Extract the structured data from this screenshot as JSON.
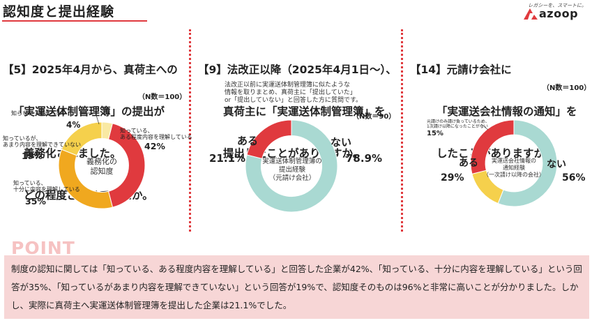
{
  "page": {
    "title": "認知度と提出経験"
  },
  "brand": {
    "tagline": "レガシーを、スマートに。",
    "name": "azoop",
    "accent": "#e03a3e"
  },
  "colors": {
    "red": "#e03a3e",
    "orange": "#f0a81f",
    "yellow": "#f5d04c",
    "light_yellow": "#f9e9a3",
    "teal": "#a9d9d2",
    "pink_bg": "#f7d6d6"
  },
  "panels": {
    "q5": {
      "question_lines": [
        "【5】2025年4月から、真荷主への",
        "「実運送体制管理簿」の提出が",
        "義務化されました。",
        "どの程度ご存じでしたか。"
      ],
      "n": "（N数＝100）",
      "center_label": "義務化の\n認知度",
      "labels": [
        {
          "text": "知らない・わからない",
          "pct": "4%"
        },
        {
          "text": "知っている、\nある程度内容を理解している",
          "pct": "42%"
        },
        {
          "text": "知っている、\n十分に内容を理解している",
          "pct": "35%"
        },
        {
          "text": "知っているが、\nあまり内容を理解できていない",
          "pct": "19%"
        }
      ]
    },
    "q9": {
      "question_lines": [
        "【9】法改正以降（2025年4月1日〜）、",
        "真荷主に「実運送体制管理簿」を",
        "提出したことがありますか。"
      ],
      "note": "法改正以前に実運送体制管理簿に似たような\n情報を取りまとめ、真荷主に「提出していた」\nor「提出していない」と回答した方に質問です。",
      "n": "（N数＝90）",
      "center_label": "実運送体制管理簿の\n提出経験\n（元請け会社）",
      "labels": [
        {
          "text": "ある",
          "pct": "21.1%"
        },
        {
          "text": "ない",
          "pct": "78.9%"
        }
      ]
    },
    "q14": {
      "question_lines": [
        "【14】元請け会社に",
        "「実運送会社情報の通知」を",
        "したことがありますか。"
      ],
      "n": "（N数＝100）",
      "center_label": "実運送会社情報の\n通知経験\n（一次請け以降の会社）",
      "labels": [
        {
          "text": "元請けのみ請け負っているため、\n1次請け以降になったことがない",
          "pct": "15%"
        },
        {
          "text": "ある",
          "pct": "29%"
        },
        {
          "text": "ない",
          "pct": "56%"
        }
      ]
    }
  },
  "point": {
    "label": "POINT",
    "text": "制度の認知に関しては「知っている、ある程度内容を理解している」と回答した企業が42%、「知っている、十分に内容を理解している」という回答が35%、「知っているがあまり内容を理解できていない」という回答が19%で、認知度そのものは96%と非常に高いことが分かりました。しかし、実際に真荷主へ実運送体制管理簿を提出した企業は21.1%でした。"
  },
  "chart_data": [
    {
      "type": "pie",
      "title": "義務化の認知度",
      "categories": [
        "知らない・わからない",
        "知っている、ある程度内容を理解している",
        "知っている、十分に内容を理解している",
        "知っているが、あまり内容を理解できていない"
      ],
      "values": [
        4,
        42,
        35,
        19
      ],
      "colors": [
        "#f9e9a3",
        "#e03a3e",
        "#f0a81f",
        "#f5d04c"
      ],
      "start": "top",
      "direction": "clockwise",
      "order": [
        0,
        1,
        2,
        3
      ]
    },
    {
      "type": "pie",
      "title": "実運送体制管理簿の提出経験（元請け会社）",
      "categories": [
        "ある",
        "ない"
      ],
      "values": [
        21.1,
        78.9
      ],
      "colors": [
        "#e03a3e",
        "#a9d9d2"
      ],
      "start": "top",
      "direction": "counterclockwise"
    },
    {
      "type": "pie",
      "title": "実運送会社情報の通知経験（一次請け以降の会社）",
      "categories": [
        "ない",
        "元請けのみ請け負っているため、1次請け以降になったことがない",
        "ある"
      ],
      "values": [
        56,
        15,
        29
      ],
      "colors": [
        "#a9d9d2",
        "#f5d04c",
        "#e03a3e"
      ],
      "start": "top",
      "direction": "clockwise"
    }
  ]
}
